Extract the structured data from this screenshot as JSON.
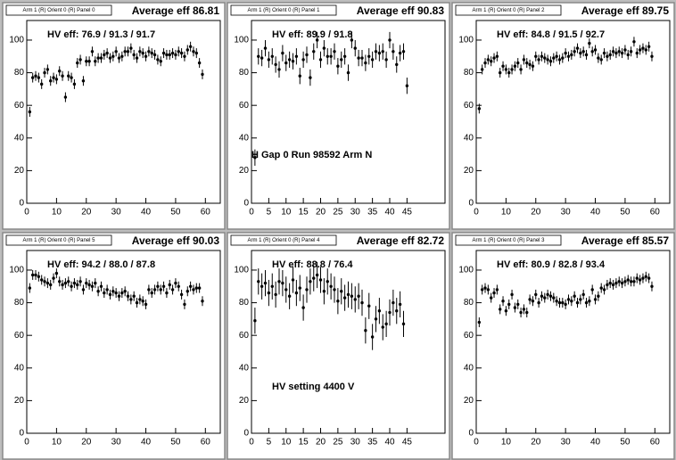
{
  "chart_data": [
    {
      "type": "scatter",
      "pad_label": "Arm 1 (R) Orient 0 (R) Panel 0",
      "title": "Average eff 86.81",
      "hv_text": "HV eff:   76.9 / 91.3 / 91.7",
      "xlim": [
        0,
        65
      ],
      "xticks": [
        0,
        10,
        20,
        30,
        40,
        50,
        60
      ],
      "ylim": [
        0,
        112
      ],
      "yticks": [
        0,
        20,
        40,
        60,
        80,
        100
      ],
      "color": "#000000",
      "error": 3,
      "x": [
        1,
        2,
        3,
        4,
        5,
        6,
        7,
        8,
        9,
        10,
        11,
        12,
        13,
        14,
        15,
        16,
        17,
        18,
        19,
        20,
        21,
        22,
        23,
        24,
        25,
        26,
        27,
        28,
        29,
        30,
        31,
        32,
        33,
        34,
        35,
        36,
        37,
        38,
        39,
        40,
        41,
        42,
        43,
        44,
        45,
        46,
        47,
        48,
        49,
        50,
        51,
        52,
        53,
        54,
        55,
        56,
        57,
        58,
        59
      ],
      "values": [
        56,
        77,
        78,
        77,
        73,
        80,
        82,
        75,
        77,
        76,
        81,
        78,
        65,
        78,
        77,
        73,
        86,
        88,
        75,
        87,
        87,
        93,
        87,
        89,
        89,
        91,
        92,
        89,
        90,
        93,
        89,
        90,
        93,
        93,
        95,
        91,
        89,
        93,
        92,
        90,
        93,
        92,
        91,
        88,
        87,
        92,
        91,
        91,
        92,
        91,
        93,
        92,
        90,
        94,
        96,
        93,
        92,
        86,
        79
      ]
    },
    {
      "type": "scatter",
      "pad_label": "Arm 1 (R) Orient 0 (R) Panel 1",
      "title": "Average eff 90.83",
      "hv_text": "HV eff:   89.9 / 91.8",
      "annotation": "H Gap 0 Run 98592 Arm N",
      "xlim": [
        0,
        56
      ],
      "xticks": [
        0,
        5,
        10,
        15,
        20,
        25,
        30,
        35,
        40,
        45
      ],
      "ylim": [
        0,
        112
      ],
      "yticks": [
        0,
        20,
        40,
        60,
        80,
        100
      ],
      "color": "#000000",
      "error": 5,
      "x": [
        1,
        2,
        3,
        4,
        5,
        6,
        7,
        8,
        9,
        10,
        11,
        12,
        13,
        14,
        15,
        16,
        17,
        18,
        19,
        20,
        21,
        22,
        23,
        24,
        25,
        26,
        27,
        28,
        29,
        30,
        31,
        32,
        33,
        34,
        35,
        36,
        37,
        38,
        39,
        40,
        41,
        42,
        43,
        44,
        45
      ],
      "values": [
        28,
        90,
        89,
        95,
        88,
        90,
        85,
        82,
        92,
        86,
        88,
        87,
        90,
        78,
        88,
        91,
        77,
        93,
        100,
        88,
        95,
        90,
        90,
        93,
        84,
        88,
        90,
        80,
        100,
        95,
        89,
        89,
        86,
        90,
        88,
        93,
        92,
        93,
        88,
        100,
        93,
        85,
        92,
        93,
        72
      ]
    },
    {
      "type": "scatter",
      "pad_label": "Arm 1 (R) Orient 0 (R) Panel 2",
      "title": "Average eff 89.75",
      "hv_text": "HV eff:   84.8 / 91.5 / 92.7",
      "xlim": [
        0,
        65
      ],
      "xticks": [
        0,
        10,
        20,
        30,
        40,
        50,
        60
      ],
      "ylim": [
        0,
        112
      ],
      "yticks": [
        0,
        20,
        40,
        60,
        80,
        100
      ],
      "color": "#000000",
      "error": 3,
      "x": [
        1,
        2,
        3,
        4,
        5,
        6,
        7,
        8,
        9,
        10,
        11,
        12,
        13,
        14,
        15,
        16,
        17,
        18,
        19,
        20,
        21,
        22,
        23,
        24,
        25,
        26,
        27,
        28,
        29,
        30,
        31,
        32,
        33,
        34,
        35,
        36,
        37,
        38,
        39,
        40,
        41,
        42,
        43,
        44,
        45,
        46,
        47,
        48,
        49,
        50,
        51,
        52,
        53,
        54,
        55,
        56,
        57,
        58,
        59
      ],
      "values": [
        58,
        82,
        86,
        88,
        87,
        89,
        90,
        80,
        84,
        82,
        80,
        82,
        84,
        86,
        82,
        88,
        86,
        85,
        84,
        90,
        88,
        90,
        89,
        88,
        87,
        89,
        90,
        88,
        89,
        92,
        90,
        91,
        93,
        95,
        92,
        93,
        91,
        98,
        93,
        94,
        89,
        88,
        92,
        90,
        91,
        93,
        92,
        93,
        92,
        94,
        91,
        93,
        99,
        92,
        94,
        95,
        94,
        96,
        90
      ]
    },
    {
      "type": "scatter",
      "pad_label": "Arm 1 (R) Orient 0 (R) Panel 5",
      "title": "Average eff 90.03",
      "hv_text": "HV eff:   94.2 / 88.0 / 87.8",
      "xlim": [
        0,
        65
      ],
      "xticks": [
        0,
        10,
        20,
        30,
        40,
        50,
        60
      ],
      "ylim": [
        0,
        112
      ],
      "yticks": [
        0,
        20,
        40,
        60,
        80,
        100
      ],
      "color": "#000000",
      "error": 3,
      "x": [
        1,
        2,
        3,
        4,
        5,
        6,
        7,
        8,
        9,
        10,
        11,
        12,
        13,
        14,
        15,
        16,
        17,
        18,
        19,
        20,
        21,
        22,
        23,
        24,
        25,
        26,
        27,
        28,
        29,
        30,
        31,
        32,
        33,
        34,
        35,
        36,
        37,
        38,
        39,
        40,
        41,
        42,
        43,
        44,
        45,
        46,
        47,
        48,
        49,
        50,
        51,
        52,
        53,
        54,
        55,
        56,
        57,
        58,
        59
      ],
      "values": [
        89,
        97,
        97,
        96,
        94,
        93,
        92,
        91,
        95,
        98,
        93,
        91,
        92,
        93,
        90,
        92,
        91,
        93,
        88,
        92,
        91,
        90,
        92,
        87,
        90,
        86,
        88,
        85,
        87,
        86,
        84,
        86,
        87,
        84,
        82,
        84,
        80,
        82,
        81,
        79,
        88,
        86,
        88,
        90,
        88,
        90,
        86,
        91,
        88,
        92,
        90,
        85,
        79,
        87,
        90,
        88,
        89,
        89,
        81
      ]
    },
    {
      "type": "scatter",
      "pad_label": "Arm 1 (R) Orient 0 (R) Panel 4",
      "title": "Average eff 82.72",
      "hv_text": "HV eff:   88.8 / 76.4",
      "annotation": "HV setting 4400 V",
      "xlim": [
        0,
        56
      ],
      "xticks": [
        0,
        5,
        10,
        15,
        20,
        25,
        30,
        35,
        40,
        45
      ],
      "ylim": [
        0,
        112
      ],
      "yticks": [
        0,
        20,
        40,
        60,
        80,
        100
      ],
      "color": "#000000",
      "error": 8,
      "x": [
        1,
        2,
        3,
        4,
        5,
        6,
        7,
        8,
        9,
        10,
        11,
        12,
        13,
        14,
        15,
        16,
        17,
        18,
        19,
        20,
        21,
        22,
        23,
        24,
        25,
        26,
        27,
        28,
        29,
        30,
        31,
        32,
        33,
        34,
        35,
        36,
        37,
        38,
        39,
        40,
        41,
        42,
        43,
        44
      ],
      "values": [
        69,
        93,
        90,
        92,
        86,
        90,
        85,
        93,
        92,
        88,
        84,
        94,
        86,
        89,
        77,
        88,
        93,
        95,
        97,
        94,
        87,
        93,
        90,
        88,
        81,
        87,
        83,
        85,
        84,
        82,
        84,
        80,
        63,
        78,
        59,
        70,
        75,
        65,
        67,
        74,
        80,
        75,
        79,
        67
      ]
    },
    {
      "type": "scatter",
      "pad_label": "Arm 1 (R) Orient 0 (R) Panel 3",
      "title": "Average eff 85.57",
      "hv_text": "HV eff:   80.9 / 82.8 / 93.4",
      "xlim": [
        0,
        65
      ],
      "xticks": [
        0,
        10,
        20,
        30,
        40,
        50,
        60
      ],
      "ylim": [
        0,
        112
      ],
      "yticks": [
        0,
        20,
        40,
        60,
        80,
        100
      ],
      "color": "#000000",
      "error": 3,
      "x": [
        1,
        2,
        3,
        4,
        5,
        6,
        7,
        8,
        9,
        10,
        11,
        12,
        13,
        14,
        15,
        16,
        17,
        18,
        19,
        20,
        21,
        22,
        23,
        24,
        25,
        26,
        27,
        28,
        29,
        30,
        31,
        32,
        33,
        34,
        35,
        36,
        37,
        38,
        39,
        40,
        41,
        42,
        43,
        44,
        45,
        46,
        47,
        48,
        49,
        50,
        51,
        52,
        53,
        54,
        55,
        56,
        57,
        58,
        59
      ],
      "values": [
        68,
        88,
        89,
        88,
        83,
        86,
        88,
        76,
        81,
        75,
        79,
        85,
        77,
        79,
        74,
        76,
        74,
        82,
        81,
        85,
        80,
        84,
        83,
        85,
        84,
        83,
        81,
        80,
        80,
        79,
        82,
        81,
        84,
        80,
        82,
        85,
        80,
        81,
        88,
        82,
        84,
        89,
        88,
        91,
        92,
        91,
        92,
        93,
        92,
        93,
        94,
        93,
        93,
        95,
        94,
        95,
        96,
        95,
        90
      ]
    }
  ]
}
